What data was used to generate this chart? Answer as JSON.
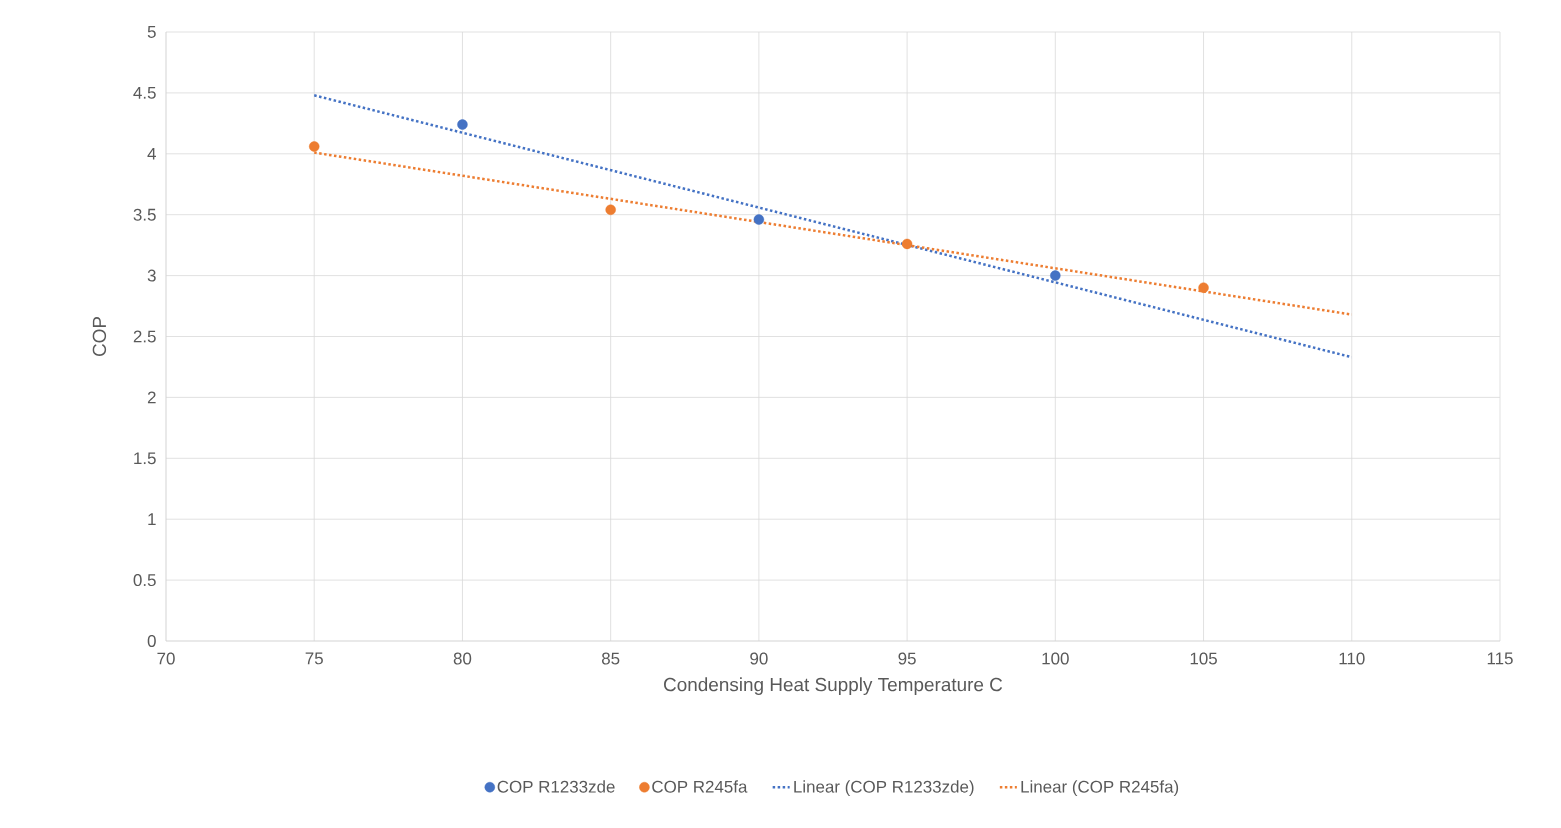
{
  "chart_data": {
    "type": "scatter",
    "xlabel": "Condensing Heat Supply Temperature C",
    "ylabel": "COP",
    "xlim": [
      70,
      115
    ],
    "xticks": [
      70,
      75,
      80,
      85,
      90,
      95,
      100,
      105,
      110,
      115
    ],
    "ylim": [
      0,
      5
    ],
    "yticks": [
      0,
      0.5,
      1,
      1.5,
      2,
      2.5,
      3,
      3.5,
      4,
      4.5,
      5
    ],
    "grid": true,
    "legend": "bottom",
    "series": [
      {
        "name": "COP R1233zde",
        "color": "#4472c4",
        "marker": "circle",
        "x": [
          80,
          90,
          100
        ],
        "values": [
          4.24,
          3.46,
          3.0
        ]
      },
      {
        "name": "COP R245fa",
        "color": "#ed7d31",
        "marker": "circle",
        "x": [
          75,
          85,
          95,
          105
        ],
        "values": [
          4.06,
          3.54,
          3.26,
          2.9
        ]
      },
      {
        "name": "Linear (COP R1233zde)",
        "type": "line",
        "color": "#4472c4",
        "marker": "none",
        "line_style": "dotted",
        "x": [
          75,
          110
        ],
        "values": [
          4.48,
          2.33
        ]
      },
      {
        "name": "Linear (COP R245fa)",
        "type": "line",
        "color": "#ed7d31",
        "marker": "none",
        "line_style": "dotted",
        "x": [
          75,
          110
        ],
        "values": [
          4.01,
          2.68
        ]
      }
    ]
  }
}
